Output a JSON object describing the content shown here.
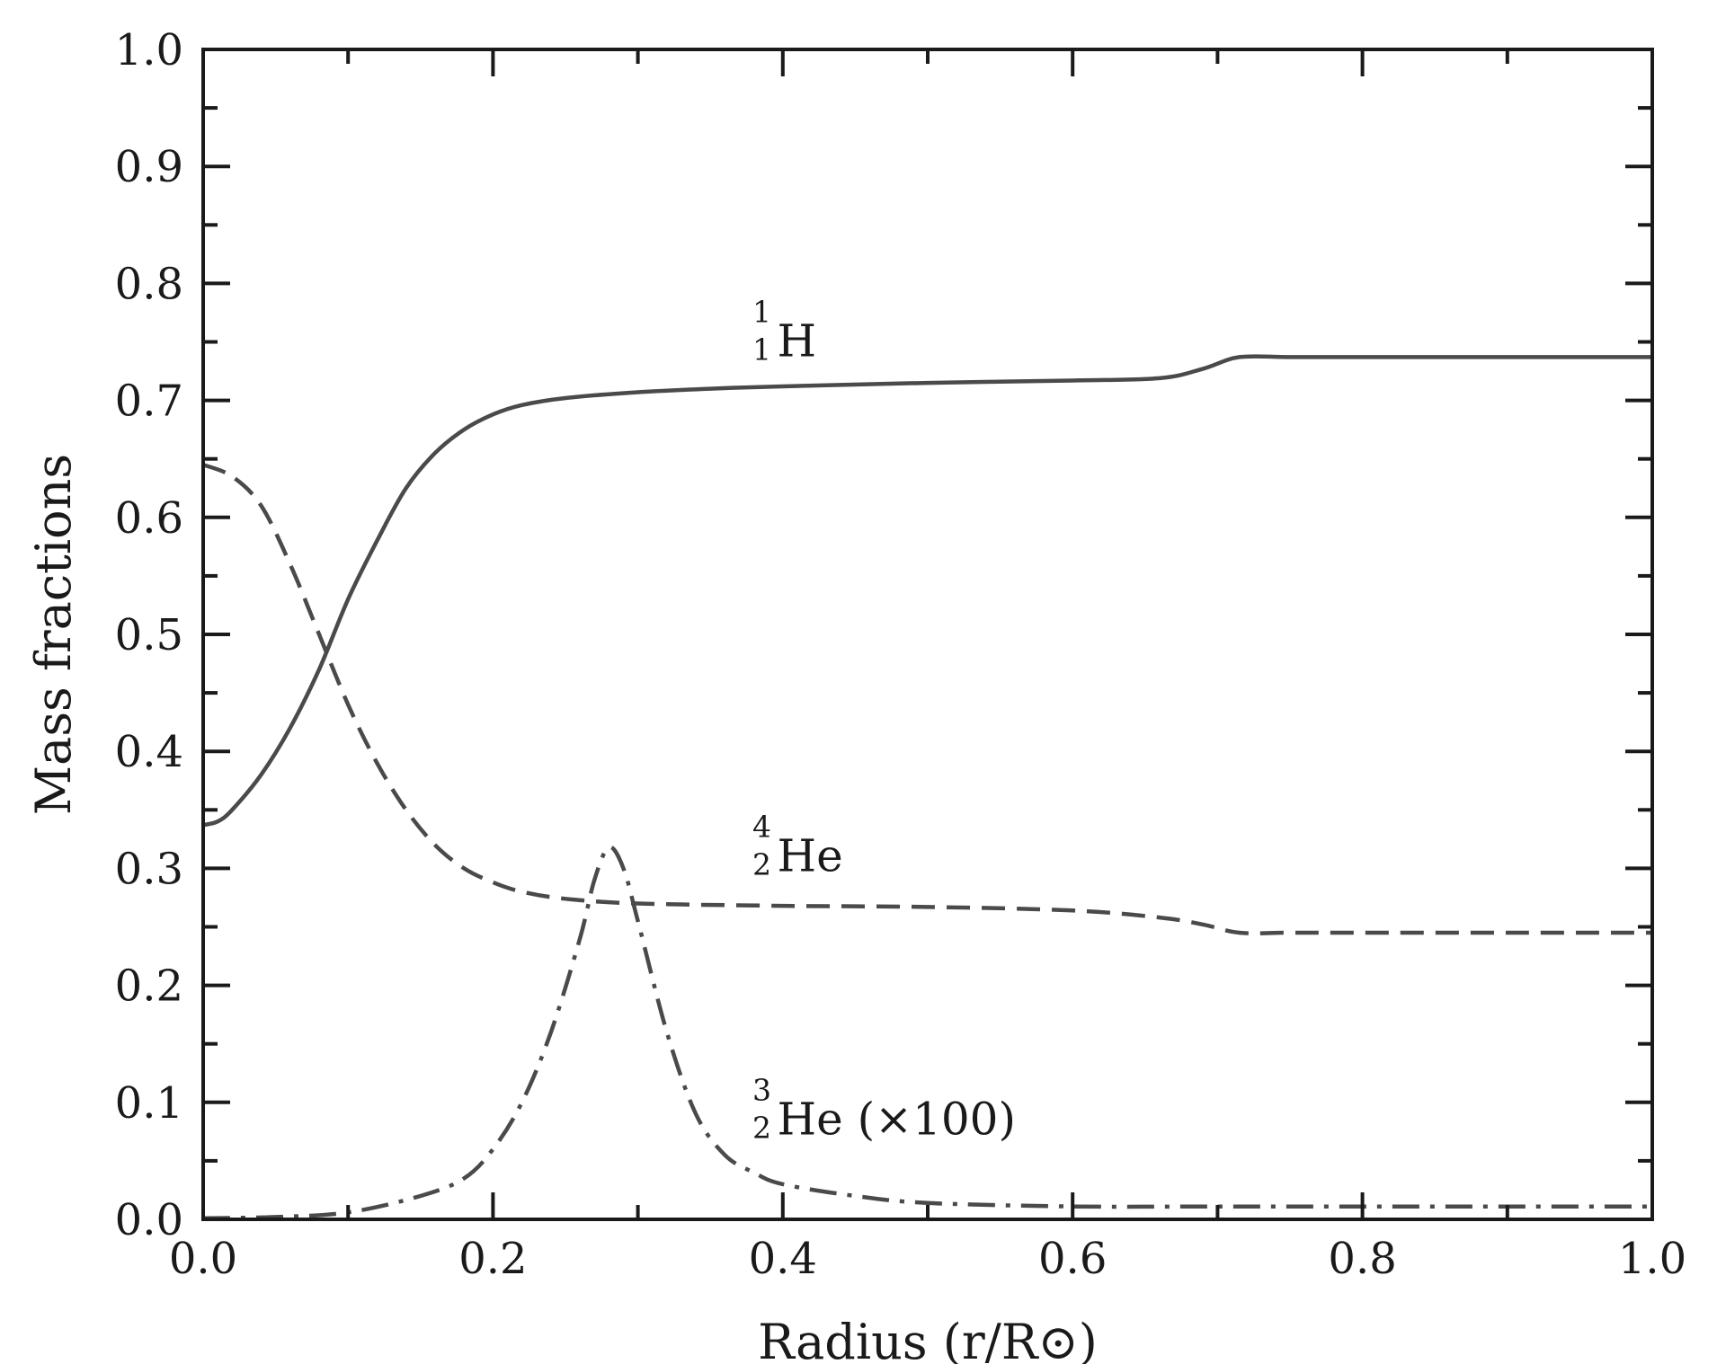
{
  "chart_data": {
    "type": "line",
    "xlabel": "Radius (r/R⊙)",
    "ylabel": "Mass fractions",
    "xlim": [
      0.0,
      1.0
    ],
    "ylim": [
      0.0,
      1.0
    ],
    "x_ticks": [
      "0.0",
      "0.2",
      "0.4",
      "0.6",
      "0.8",
      "1.0"
    ],
    "y_ticks": [
      "0.0",
      "0.1",
      "0.2",
      "0.3",
      "0.4",
      "0.5",
      "0.6",
      "0.7",
      "0.8",
      "0.9",
      "1.0"
    ],
    "grid": false,
    "legend": "none",
    "annotations": [
      {
        "sup": "1",
        "sub": "1",
        "text": "H",
        "x": 0.38,
        "y": 0.75
      },
      {
        "sup": "4",
        "sub": "2",
        "text": "He",
        "x": 0.38,
        "y": 0.31
      },
      {
        "sup": "3",
        "sub": "2",
        "text": "He (×100)",
        "x": 0.38,
        "y": 0.085
      }
    ],
    "series": [
      {
        "style": "solid",
        "color": "#4a4a4a",
        "x": [
          0.0,
          0.01,
          0.02,
          0.04,
          0.06,
          0.08,
          0.1,
          0.12,
          0.14,
          0.16,
          0.18,
          0.2,
          0.22,
          0.25,
          0.3,
          0.35,
          0.4,
          0.5,
          0.6,
          0.66,
          0.69,
          0.715,
          0.75,
          0.8,
          0.9,
          1.0
        ],
        "y": [
          0.337,
          0.34,
          0.35,
          0.38,
          0.42,
          0.47,
          0.53,
          0.58,
          0.625,
          0.655,
          0.675,
          0.688,
          0.696,
          0.702,
          0.707,
          0.71,
          0.712,
          0.715,
          0.717,
          0.719,
          0.727,
          0.737,
          0.737,
          0.737,
          0.737,
          0.737
        ]
      },
      {
        "style": "dashed",
        "color": "#4a4a4a",
        "x": [
          0.0,
          0.02,
          0.04,
          0.06,
          0.08,
          0.1,
          0.12,
          0.14,
          0.16,
          0.18,
          0.2,
          0.22,
          0.25,
          0.3,
          0.4,
          0.5,
          0.6,
          0.66,
          0.69,
          0.715,
          0.75,
          0.8,
          0.9,
          1.0
        ],
        "y": [
          0.645,
          0.635,
          0.61,
          0.56,
          0.5,
          0.44,
          0.39,
          0.35,
          0.32,
          0.3,
          0.288,
          0.28,
          0.274,
          0.27,
          0.268,
          0.267,
          0.264,
          0.258,
          0.252,
          0.245,
          0.245,
          0.245,
          0.245,
          0.245
        ]
      },
      {
        "style": "dashdot",
        "color": "#4a4a4a",
        "x": [
          0.0,
          0.05,
          0.1,
          0.15,
          0.18,
          0.2,
          0.22,
          0.24,
          0.26,
          0.27,
          0.28,
          0.29,
          0.3,
          0.32,
          0.34,
          0.36,
          0.38,
          0.4,
          0.45,
          0.5,
          0.6,
          0.7,
          0.8,
          0.9,
          1.0
        ],
        "y": [
          0.001,
          0.002,
          0.006,
          0.02,
          0.035,
          0.06,
          0.1,
          0.16,
          0.24,
          0.29,
          0.318,
          0.3,
          0.255,
          0.16,
          0.09,
          0.055,
          0.04,
          0.03,
          0.02,
          0.014,
          0.011,
          0.011,
          0.011,
          0.011,
          0.011
        ]
      }
    ]
  }
}
